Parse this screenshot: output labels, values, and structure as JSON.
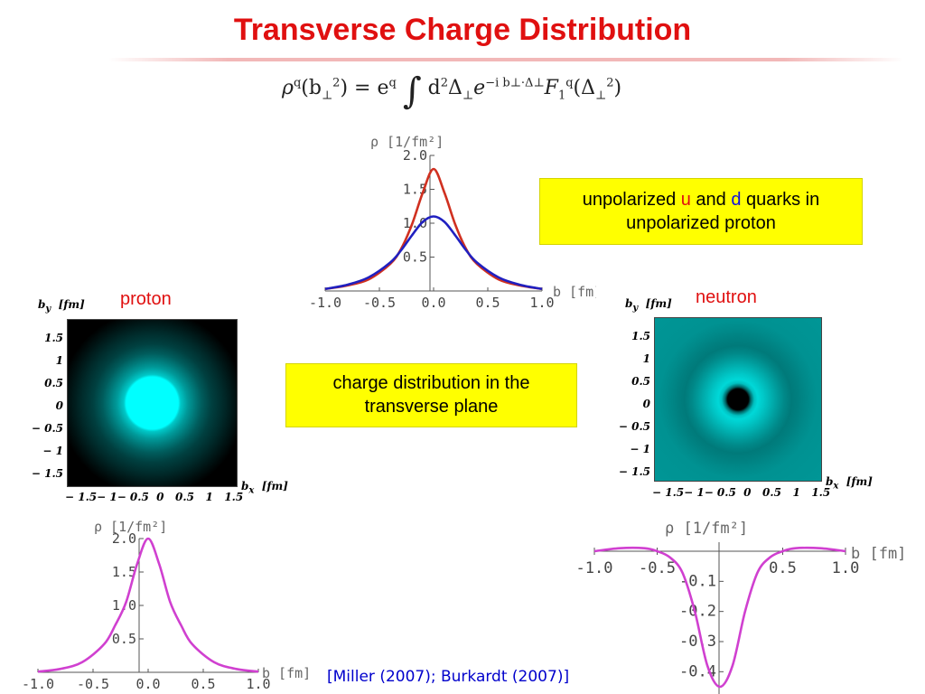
{
  "title": "Transverse Charge Distribution",
  "formula": {
    "lhs": "ρ",
    "q": "q",
    "b2": "(b",
    "perp": "⊥",
    "two": "2",
    "eq": ") = e",
    "integral": "∫",
    "d2": "d",
    "delta": "Δ",
    "exp_e": "e",
    "exponent": "−i b⊥·Δ⊥",
    "F": "F",
    "one": "1",
    "tail": "(Δ"
  },
  "box_top": {
    "part1": "unpolarized ",
    "u": "u",
    "part2": " and ",
    "d": "d",
    "part3": " quarks in",
    "line2": "unpolarized proton"
  },
  "box_mid": {
    "line1": "charge distribution in the",
    "line2": "transverse plane"
  },
  "proton_label": "proton",
  "neutron_label": "neutron",
  "density_axes": {
    "ylabel": "b",
    "ysub": "y",
    "yunit": "[fm]",
    "xlabel": "b",
    "xsub": "x",
    "xunit": "[fm]",
    "yticks": [
      "1.5",
      "1",
      "0.5",
      "0",
      "− 0.5",
      "− 1",
      "− 1.5"
    ],
    "xticks": "− 1.5− 1− 0.5  0   0.5   1   1.5"
  },
  "citation": "[Miller (2007); Burkardt (2007)]",
  "colors": {
    "title": "#e01010",
    "box": "#ffff00",
    "u_curve": "#d03020",
    "d_curve": "#2020c0",
    "proton_curve": "#d040d0",
    "neutron_curve": "#d040d0",
    "proton_core": "#00ffff",
    "neutron_core": "#00a0a0"
  },
  "chart_data": [
    {
      "type": "line",
      "ylabel": "ρ [1/fm²]",
      "xlabel": "b [fm]",
      "xlim": [
        -1.0,
        1.0
      ],
      "ylim": [
        0,
        2.0
      ],
      "xticks": [
        "-1.0",
        "-0.5",
        "0.0",
        "0.5",
        "1.0"
      ],
      "yticks": [
        "0.5",
        "1.0",
        "1.5",
        "2.0"
      ],
      "x": [
        -1.0,
        -0.8,
        -0.6,
        -0.4,
        -0.3,
        -0.2,
        -0.1,
        0.0,
        0.1,
        0.2,
        0.3,
        0.4,
        0.6,
        0.8,
        1.0
      ],
      "series": [
        {
          "values": [
            0.03,
            0.08,
            0.17,
            0.4,
            0.62,
            0.98,
            1.45,
            1.8,
            1.45,
            0.98,
            0.62,
            0.4,
            0.17,
            0.08,
            0.03
          ]
        },
        {
          "values": [
            0.03,
            0.09,
            0.2,
            0.42,
            0.6,
            0.82,
            1.02,
            1.1,
            1.02,
            0.82,
            0.6,
            0.42,
            0.2,
            0.09,
            0.03
          ]
        }
      ]
    },
    {
      "type": "line",
      "ylabel": "ρ [1/fm²]",
      "xlabel": "b [fm]",
      "xlim": [
        -1.0,
        1.0
      ],
      "ylim": [
        0,
        2.0
      ],
      "xticks": [
        "-1.0",
        "-0.5",
        "0.0",
        "0.5",
        "1.0"
      ],
      "yticks": [
        "0.5",
        "1.0",
        "1.5",
        "2.0"
      ],
      "x": [
        -1.0,
        -0.8,
        -0.6,
        -0.4,
        -0.3,
        -0.2,
        -0.1,
        0.0,
        0.1,
        0.2,
        0.3,
        0.4,
        0.6,
        0.8,
        1.0
      ],
      "series": [
        {
          "values": [
            0.01,
            0.05,
            0.15,
            0.42,
            0.7,
            1.05,
            1.62,
            2.0,
            1.62,
            1.05,
            0.7,
            0.42,
            0.15,
            0.05,
            0.01
          ]
        }
      ]
    },
    {
      "type": "line",
      "ylabel": "ρ [1/fm²]",
      "xlabel": "b [fm]",
      "xlim": [
        -1.0,
        1.0
      ],
      "ylim": [
        -0.45,
        0.05
      ],
      "xticks": [
        "-1.0",
        "-0.5",
        "0.5",
        "1.0"
      ],
      "yticks": [
        "-0.1",
        "-0.2",
        "-0.3",
        "-0.4"
      ],
      "x": [
        -1.0,
        -0.8,
        -0.6,
        -0.5,
        -0.4,
        -0.3,
        -0.2,
        -0.1,
        0.0,
        0.1,
        0.2,
        0.3,
        0.4,
        0.5,
        0.6,
        0.8,
        1.0
      ],
      "series": [
        {
          "values": [
            0.0,
            0.01,
            0.01,
            0.0,
            -0.02,
            -0.07,
            -0.2,
            -0.38,
            -0.45,
            -0.38,
            -0.2,
            -0.07,
            -0.02,
            0.0,
            0.01,
            0.01,
            0.0
          ]
        }
      ]
    }
  ]
}
